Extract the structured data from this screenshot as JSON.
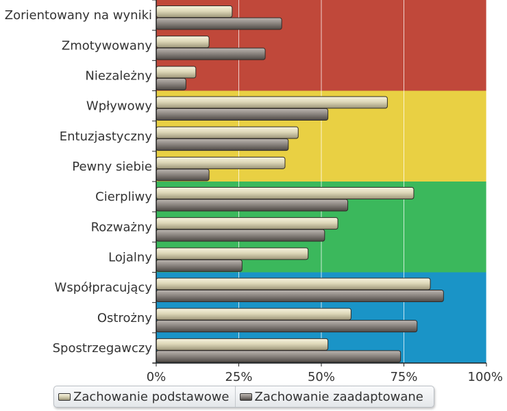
{
  "chart_data": {
    "type": "bar",
    "orientation": "horizontal",
    "title": "",
    "xlabel": "",
    "ylabel": "",
    "xlim": [
      0,
      100
    ],
    "x_ticks": [
      "0%",
      "25%",
      "50%",
      "75%",
      "100%"
    ],
    "grid": true,
    "legend_position": "bottom",
    "categories": [
      "Zorientowany na wyniki",
      "Zmotywowany",
      "Niezależny",
      "Wpływowy",
      "Entuzjastyczny",
      "Pewny siebie",
      "Cierpliwy",
      "Rozważny",
      "Lojalny",
      "Współpracujący",
      "Ostrożny",
      "Spostrzegawczy"
    ],
    "series": [
      {
        "name": "Zachowanie podstawowe",
        "color": "#d4cfb0",
        "values": [
          23,
          16,
          12,
          70,
          43,
          39,
          78,
          55,
          46,
          83,
          59,
          52
        ]
      },
      {
        "name": "Zachowanie zaadaptowane",
        "color": "#8a8480",
        "values": [
          38,
          33,
          9,
          52,
          40,
          16,
          58,
          51,
          26,
          87,
          79,
          74
        ]
      }
    ],
    "background_bands": [
      {
        "color": "#c0483a",
        "categories": [
          "Zorientowany na wyniki",
          "Zmotywowany",
          "Niezależny"
        ]
      },
      {
        "color": "#e9d043",
        "categories": [
          "Wpływowy",
          "Entuzjastyczny",
          "Pewny siebie"
        ]
      },
      {
        "color": "#3bb85c",
        "categories": [
          "Cierpliwy",
          "Rozważny",
          "Lojalny"
        ]
      },
      {
        "color": "#1a94c7",
        "categories": [
          "Współpracujący",
          "Ostrożny",
          "Spostrzegawczy"
        ]
      }
    ]
  },
  "legend": {
    "items": [
      {
        "label": "Zachowanie podstawowe"
      },
      {
        "label": "Zachowanie zaadaptowane"
      }
    ]
  }
}
